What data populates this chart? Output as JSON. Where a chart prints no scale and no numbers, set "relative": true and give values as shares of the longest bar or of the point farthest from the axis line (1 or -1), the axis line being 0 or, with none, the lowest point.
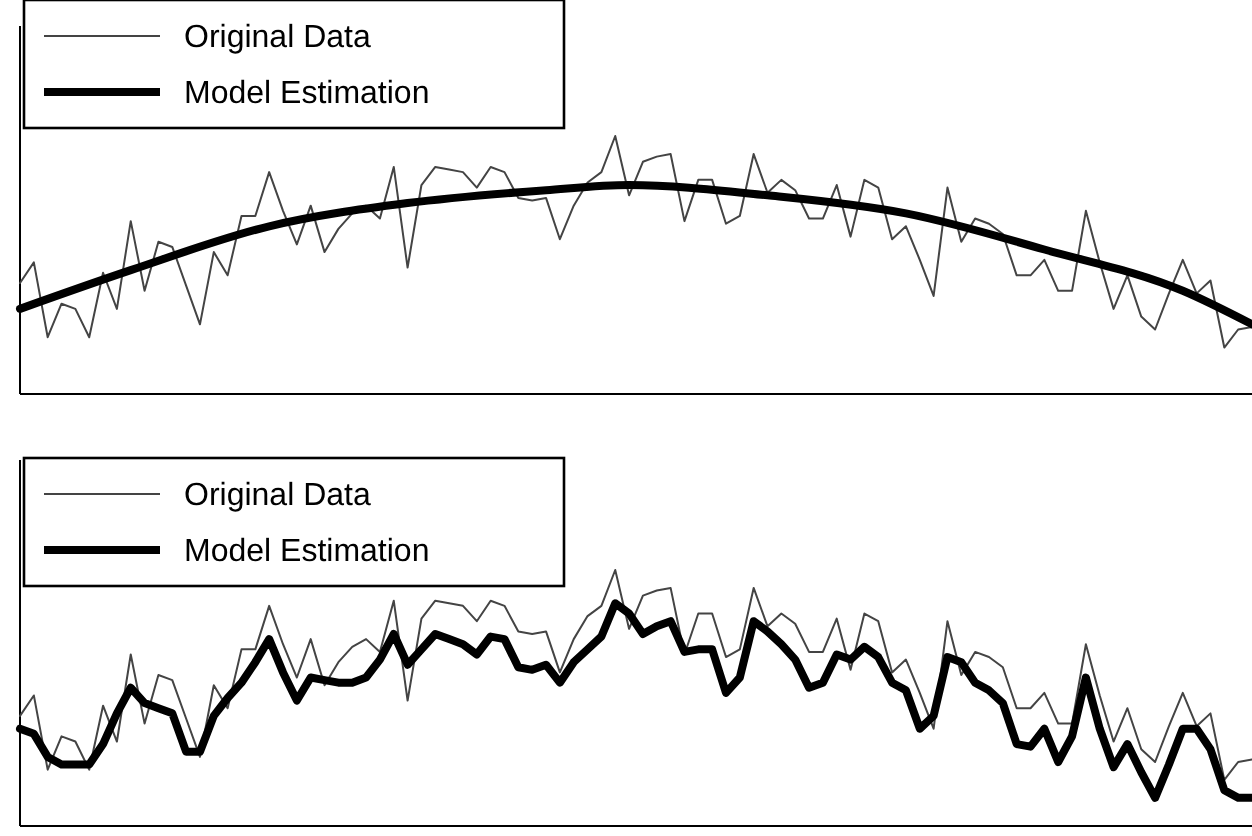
{
  "chart_data": [
    {
      "type": "line",
      "relative": true,
      "legend": "top left",
      "categories": [
        null,
        null,
        null,
        null,
        null,
        null,
        null,
        null,
        null,
        null,
        null,
        null,
        null,
        null,
        null,
        null,
        null,
        null,
        null,
        null,
        null,
        null,
        null,
        null,
        null,
        null,
        null,
        null,
        null,
        null,
        null,
        null,
        null,
        null,
        null,
        null,
        null,
        null,
        null,
        null,
        null,
        null,
        null,
        null,
        null,
        null,
        null,
        null,
        null,
        null,
        null,
        null,
        null,
        null,
        null,
        null,
        null,
        null,
        null,
        null,
        null,
        null,
        null,
        null,
        null,
        null,
        null,
        null,
        null,
        null,
        null,
        null,
        null,
        null,
        null,
        null,
        null,
        null,
        null,
        null,
        null,
        null,
        null,
        null,
        null,
        null,
        null,
        null,
        null,
        null
      ],
      "series": [
        {
          "name": "Original Data",
          "color": "#444444",
          "values": [
            0.43,
            0.51,
            0.22,
            0.35,
            0.33,
            0.22,
            0.47,
            0.33,
            0.67,
            0.4,
            0.59,
            0.57,
            0.42,
            0.27,
            0.55,
            0.46,
            0.69,
            0.69,
            0.86,
            0.71,
            0.58,
            0.73,
            0.55,
            0.64,
            0.7,
            0.73,
            0.68,
            0.88,
            0.49,
            0.81,
            0.88,
            0.87,
            0.86,
            0.8,
            0.88,
            0.86,
            0.76,
            0.75,
            0.76,
            0.6,
            0.73,
            0.82,
            0.86,
            1,
            0.77,
            0.9,
            0.92,
            0.93,
            0.67,
            0.83,
            0.83,
            0.66,
            0.69,
            0.93,
            0.78,
            0.83,
            0.79,
            0.68,
            0.68,
            0.81,
            0.61,
            0.83,
            0.8,
            0.6,
            0.65,
            0.52,
            0.38,
            0.8,
            0.59,
            0.68,
            0.66,
            0.62,
            0.46,
            0.46,
            0.52,
            0.4,
            0.4,
            0.71,
            0.51,
            0.33,
            0.46,
            0.3,
            0.25,
            0.39,
            0.52,
            0.39,
            0.44,
            0.18,
            0.25,
            0.26
          ]
        },
        {
          "name": "Model Estimation",
          "color": "#000000",
          "values": [
            0.33,
            null,
            null,
            null,
            null,
            null,
            null,
            null,
            0.48,
            null,
            null,
            null,
            null,
            null,
            null,
            null,
            null,
            null,
            0.65,
            null,
            null,
            null,
            null,
            null,
            null,
            null,
            null,
            null,
            0.74,
            null,
            null,
            null,
            null,
            null,
            null,
            null,
            null,
            null,
            0.79,
            null,
            null,
            null,
            null,
            null,
            0.81,
            null,
            null,
            null,
            null,
            null,
            null,
            null,
            null,
            null,
            0.77,
            null,
            null,
            null,
            null,
            null,
            null,
            null,
            null,
            null,
            0.7,
            null,
            null,
            null,
            null,
            null,
            null,
            null,
            null,
            null,
            0.56,
            null,
            null,
            null,
            null,
            null,
            null,
            null,
            null,
            null,
            0.4,
            null,
            null,
            null,
            null,
            0.27
          ]
        }
      ]
    },
    {
      "type": "line",
      "relative": true,
      "legend": "top left",
      "categories": [
        null,
        null,
        null,
        null,
        null,
        null,
        null,
        null,
        null,
        null,
        null,
        null,
        null,
        null,
        null,
        null,
        null,
        null,
        null,
        null,
        null,
        null,
        null,
        null,
        null,
        null,
        null,
        null,
        null,
        null,
        null,
        null,
        null,
        null,
        null,
        null,
        null,
        null,
        null,
        null,
        null,
        null,
        null,
        null,
        null,
        null,
        null,
        null,
        null,
        null,
        null,
        null,
        null,
        null,
        null,
        null,
        null,
        null,
        null,
        null,
        null,
        null,
        null,
        null,
        null,
        null,
        null,
        null,
        null,
        null,
        null,
        null,
        null,
        null,
        null,
        null,
        null,
        null,
        null,
        null,
        null,
        null,
        null,
        null,
        null,
        null,
        null,
        null,
        null,
        null
      ],
      "series": [
        {
          "name": "Original Data",
          "color": "#444444",
          "values": [
            0.43,
            0.51,
            0.22,
            0.35,
            0.33,
            0.22,
            0.47,
            0.33,
            0.67,
            0.4,
            0.59,
            0.57,
            0.42,
            0.27,
            0.55,
            0.46,
            0.69,
            0.69,
            0.86,
            0.71,
            0.58,
            0.73,
            0.55,
            0.64,
            0.7,
            0.73,
            0.68,
            0.88,
            0.49,
            0.81,
            0.88,
            0.87,
            0.86,
            0.8,
            0.88,
            0.86,
            0.76,
            0.75,
            0.76,
            0.6,
            0.73,
            0.82,
            0.86,
            1,
            0.77,
            0.9,
            0.92,
            0.93,
            0.67,
            0.83,
            0.83,
            0.66,
            0.69,
            0.93,
            0.78,
            0.83,
            0.79,
            0.68,
            0.68,
            0.81,
            0.61,
            0.83,
            0.8,
            0.6,
            0.65,
            0.52,
            0.38,
            0.8,
            0.59,
            0.68,
            0.66,
            0.62,
            0.46,
            0.46,
            0.52,
            0.4,
            0.4,
            0.71,
            0.51,
            0.33,
            0.46,
            0.3,
            0.25,
            0.39,
            0.52,
            0.39,
            0.44,
            0.18,
            0.25,
            0.26
          ]
        },
        {
          "name": "Model Estimation",
          "color": "#000000",
          "values": [
            0.38,
            0.36,
            0.27,
            0.24,
            0.24,
            0.24,
            0.32,
            0.44,
            0.54,
            0.48,
            0.46,
            0.44,
            0.29,
            0.29,
            0.43,
            0.5,
            0.56,
            0.64,
            0.73,
            0.6,
            0.49,
            0.58,
            0.57,
            0.56,
            0.56,
            0.58,
            0.65,
            0.75,
            0.63,
            0.69,
            0.75,
            0.73,
            0.71,
            0.67,
            0.74,
            0.73,
            0.62,
            0.61,
            0.63,
            0.56,
            0.64,
            0.69,
            0.74,
            0.87,
            0.83,
            0.75,
            0.78,
            0.8,
            0.68,
            0.69,
            0.69,
            0.52,
            0.58,
            0.8,
            0.76,
            0.71,
            0.65,
            0.54,
            0.56,
            0.67,
            0.65,
            0.7,
            0.66,
            0.56,
            0.53,
            0.38,
            0.43,
            0.66,
            0.64,
            0.56,
            0.53,
            0.48,
            0.32,
            0.31,
            0.38,
            0.25,
            0.35,
            0.58,
            0.38,
            0.23,
            0.32,
            0.21,
            0.11,
            0.24,
            0.38,
            0.38,
            0.3,
            0.14,
            0.11,
            0.11
          ]
        }
      ]
    }
  ]
}
